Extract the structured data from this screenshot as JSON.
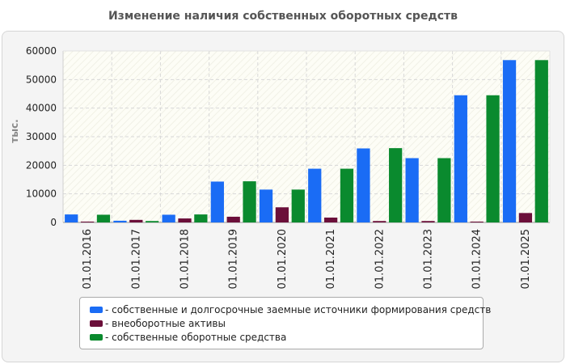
{
  "chart_data": {
    "type": "bar",
    "title": "Изменение наличия собственных оборотных средств",
    "ylabel": "тыс.",
    "xlabel": "",
    "ylim": [
      0,
      60000
    ],
    "yticks": [
      0,
      10000,
      20000,
      30000,
      40000,
      50000,
      60000
    ],
    "grid": true,
    "legend_position": "bottom",
    "categories": [
      "01.01.2016",
      "01.01.2017",
      "01.01.2018",
      "01.01.2019",
      "01.01.2020",
      "01.01.2021",
      "01.01.2022",
      "01.01.2023",
      "01.01.2024",
      "01.01.2025"
    ],
    "series": [
      {
        "name": "- собственные и долгосрочные заемные источники формирования средств",
        "color": "#1a6cf5",
        "values": [
          2800,
          600,
          2700,
          14300,
          11500,
          18800,
          25900,
          22500,
          44500,
          56800
        ]
      },
      {
        "name": "- внеоборотные активы",
        "color": "#6b0f3a",
        "values": [
          300,
          900,
          1400,
          2000,
          5300,
          1700,
          500,
          500,
          300,
          3300
        ]
      },
      {
        "name": "- собственные оборотные средства",
        "color": "#0a8a2e",
        "values": [
          2700,
          500,
          2800,
          14400,
          11500,
          18800,
          26000,
          22500,
          44500,
          56800
        ]
      }
    ]
  }
}
